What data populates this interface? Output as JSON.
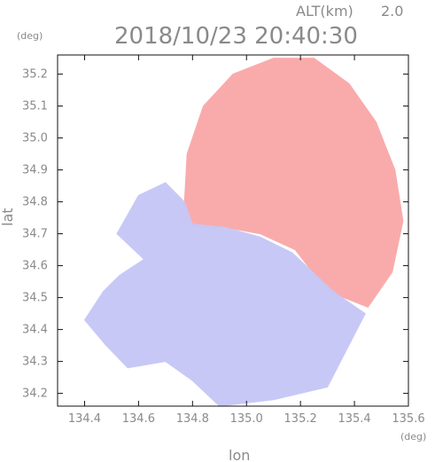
{
  "header": {
    "alt_label": "ALT(km)",
    "alt_value": "2.0",
    "datetime": "2018/10/23 20:40:30"
  },
  "axes": {
    "y_unit": "(deg)",
    "x_unit": "(deg)",
    "x_label": "lon",
    "y_label": "lat"
  },
  "colors": {
    "positive": "#f9a7a7",
    "negative": "#c7c7f7",
    "frame": "#111111",
    "text": "#8a8a8a"
  },
  "chart_data": {
    "type": "heatmap",
    "xlim": [
      134.3,
      135.6
    ],
    "ylim": [
      34.16,
      35.26
    ],
    "x_ticks": [
      {
        "value": 134.4,
        "label": "134.4"
      },
      {
        "value": 134.6,
        "label": "134.6"
      },
      {
        "value": 134.8,
        "label": "134.8"
      },
      {
        "value": 135.0,
        "label": "135.0"
      },
      {
        "value": 135.2,
        "label": "135.2"
      },
      {
        "value": 135.4,
        "label": "135.4"
      },
      {
        "value": 135.6,
        "label": "135.6"
      }
    ],
    "y_ticks": [
      {
        "value": 34.2,
        "label": "34.2"
      },
      {
        "value": 34.3,
        "label": "34.3"
      },
      {
        "value": 34.4,
        "label": "34.4"
      },
      {
        "value": 34.5,
        "label": "34.5"
      },
      {
        "value": 34.6,
        "label": "34.6"
      },
      {
        "value": 34.7,
        "label": "34.7"
      },
      {
        "value": 34.8,
        "label": "34.8"
      },
      {
        "value": 34.9,
        "label": "34.9"
      },
      {
        "value": 35.0,
        "label": "35.0"
      },
      {
        "value": 35.1,
        "label": "35.1"
      },
      {
        "value": 35.2,
        "label": "35.2"
      }
    ],
    "regions": [
      {
        "name": "positive-region",
        "color": "#f9a7a7",
        "points": [
          [
            134.77,
            34.8
          ],
          [
            134.78,
            34.95
          ],
          [
            134.84,
            35.1
          ],
          [
            134.95,
            35.2
          ],
          [
            135.1,
            35.25
          ],
          [
            135.25,
            35.25
          ],
          [
            135.38,
            35.17
          ],
          [
            135.48,
            35.05
          ],
          [
            135.55,
            34.9
          ],
          [
            135.58,
            34.74
          ],
          [
            135.54,
            34.58
          ],
          [
            135.45,
            34.47
          ],
          [
            135.3,
            34.52
          ],
          [
            135.18,
            34.65
          ],
          [
            135.05,
            34.7
          ],
          [
            134.92,
            34.72
          ],
          [
            134.82,
            34.72
          ],
          [
            134.75,
            34.74
          ]
        ]
      },
      {
        "name": "negative-region",
        "color": "#c7c7f7",
        "points": [
          [
            134.52,
            34.7
          ],
          [
            134.6,
            34.82
          ],
          [
            134.7,
            34.86
          ],
          [
            134.77,
            34.8
          ],
          [
            134.8,
            34.73
          ],
          [
            134.92,
            34.72
          ],
          [
            135.05,
            34.69
          ],
          [
            135.17,
            34.64
          ],
          [
            135.32,
            34.52
          ],
          [
            135.44,
            34.45
          ],
          [
            135.3,
            34.22
          ],
          [
            135.1,
            34.18
          ],
          [
            134.9,
            34.16
          ],
          [
            134.8,
            34.24
          ],
          [
            134.7,
            34.3
          ],
          [
            134.56,
            34.28
          ],
          [
            134.48,
            34.35
          ],
          [
            134.4,
            34.43
          ],
          [
            134.47,
            34.52
          ],
          [
            134.53,
            34.57
          ],
          [
            134.62,
            34.62
          ]
        ]
      }
    ]
  }
}
